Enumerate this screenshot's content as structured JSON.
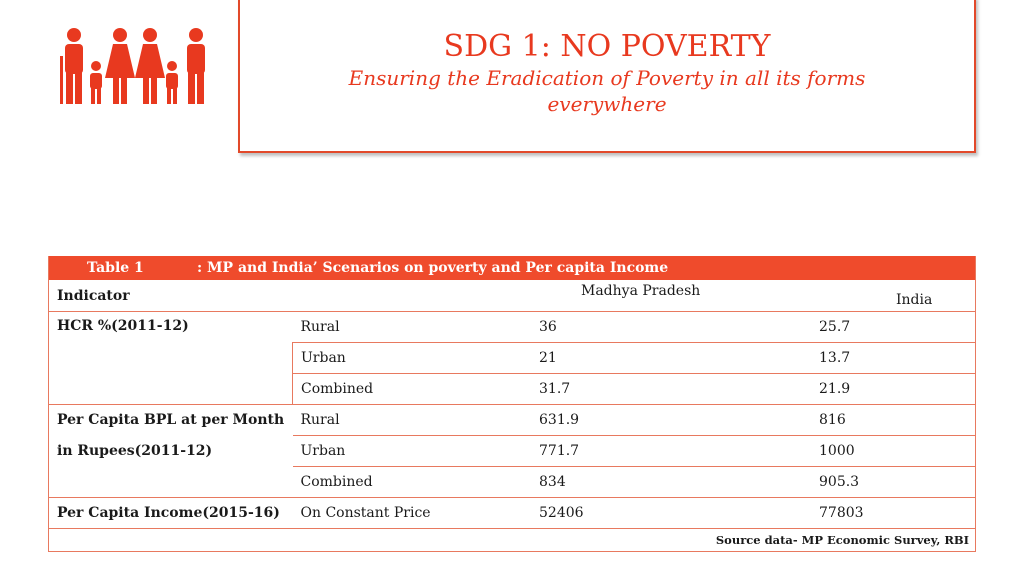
{
  "header": {
    "title": "SDG 1: NO POVERTY",
    "subtitle": "Ensuring the Eradication of Poverty in all its forms everywhere",
    "icon": "family-icon",
    "accent_color": "#e8391f"
  },
  "table": {
    "caption_label": "Table 1",
    "caption_text": ": MP and India’ Scenarios on poverty and Per capita Income",
    "col_indicator": "Indicator",
    "col_mp": "Madhya Pradesh",
    "col_india": "India",
    "groups": [
      {
        "indicator": "HCR %(2011-12)",
        "rows": [
          {
            "type": "Rural",
            "mp": "36",
            "india": "25.7"
          },
          {
            "type": "Urban",
            "mp": "21",
            "india": "13.7"
          },
          {
            "type": "Combined",
            "mp": "31.7",
            "india": "21.9"
          }
        ]
      },
      {
        "indicator_line1": "Per Capita BPL at per Month",
        "indicator_line2": "in Rupees(2011-12)",
        "rows": [
          {
            "type": "Rural",
            "mp": "631.9",
            "india": "816"
          },
          {
            "type": "Urban",
            "mp": "771.7",
            "india": "1000"
          },
          {
            "type": "Combined",
            "mp": "834",
            "india": "905.3"
          }
        ]
      },
      {
        "indicator": "Per Capita Income(2015-16)",
        "rows": [
          {
            "type": "On Constant Price",
            "mp": "52406",
            "india": "77803"
          }
        ]
      }
    ],
    "source": "Source data- MP Economic Survey, RBI",
    "header_color": "#ef4b2c",
    "border_color": "#e8795f"
  }
}
